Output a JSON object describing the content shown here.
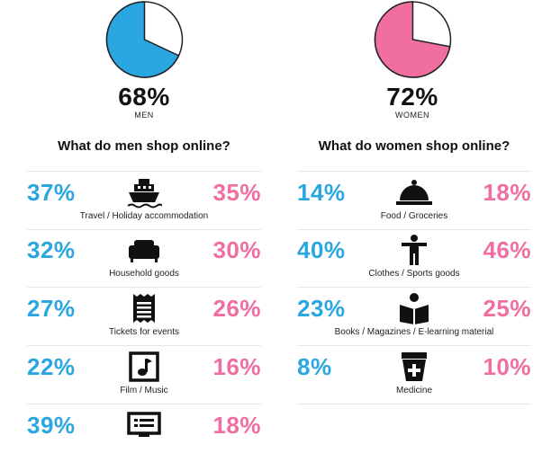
{
  "men": {
    "share": "68%",
    "label": "MEN",
    "pie_fraction": 0.68,
    "color": "#2aa6e0"
  },
  "women": {
    "share": "72%",
    "label": "WOMEN",
    "pie_fraction": 0.72,
    "color": "#f06ea0"
  },
  "men_title": "What do men shop online?",
  "women_title": "What do women shop online?",
  "colors": {
    "men": "#2aa6e0",
    "women": "#f06ea0"
  },
  "men_rows": [
    {
      "men": "37%",
      "women": "35%",
      "label": "Travel / Holiday accommodation",
      "icon": "ship-icon"
    },
    {
      "men": "32%",
      "women": "30%",
      "label": "Household goods",
      "icon": "sofa-icon"
    },
    {
      "men": "27%",
      "women": "26%",
      "label": "Tickets for events",
      "icon": "ticket-icon"
    },
    {
      "men": "22%",
      "women": "16%",
      "label": "Film / Music",
      "icon": "music-note-icon"
    },
    {
      "men": "39%",
      "women": "18%",
      "label": "",
      "icon": "monitor-icon"
    }
  ],
  "women_rows": [
    {
      "men": "14%",
      "women": "18%",
      "label": "Food / Groceries",
      "icon": "cloche-icon"
    },
    {
      "men": "40%",
      "women": "46%",
      "label": "Clothes / Sports goods",
      "icon": "person-icon"
    },
    {
      "men": "23%",
      "women": "25%",
      "label": "Books / Magazines / E-learning material",
      "icon": "reader-book-icon"
    },
    {
      "men": "8%",
      "women": "10%",
      "label": "Medicine",
      "icon": "medicine-bottle-icon"
    }
  ],
  "chart_data": {
    "type": "table",
    "series_names": [
      "Men",
      "Women"
    ],
    "pies": [
      {
        "group": "MEN",
        "value": 68
      },
      {
        "group": "WOMEN",
        "value": 72
      }
    ],
    "categories": [
      "Travel / Holiday accommodation",
      "Household goods",
      "Tickets for events",
      "Film / Music",
      "",
      "Food / Groceries",
      "Clothes / Sports goods",
      "Books / Magazines / E-learning material",
      "Medicine"
    ],
    "men": [
      37,
      32,
      27,
      22,
      39,
      14,
      40,
      23,
      8
    ],
    "women": [
      35,
      30,
      26,
      16,
      18,
      18,
      46,
      25,
      10
    ]
  }
}
